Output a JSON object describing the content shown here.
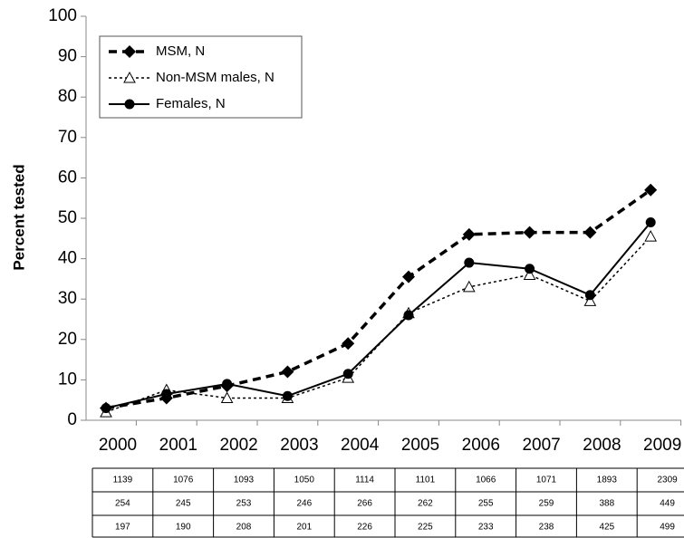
{
  "chart_data": {
    "type": "line",
    "y_label": "Percent tested",
    "categories": [
      "2000",
      "2001",
      "2002",
      "2003",
      "2004",
      "2005",
      "2006",
      "2007",
      "2008",
      "2009"
    ],
    "ylim": [
      0,
      100
    ],
    "yticks": [
      0,
      10,
      20,
      30,
      40,
      50,
      60,
      70,
      80,
      90,
      100
    ],
    "legend": "upper left",
    "series": [
      {
        "name": "MSM, N",
        "color": "#000000",
        "dash": "9,6",
        "width": 3.5,
        "marker": "diamond",
        "values": [
          3,
          5.5,
          8.5,
          12,
          19,
          35.5,
          46,
          46.5,
          46.5,
          57
        ]
      },
      {
        "name": "Non-MSM males, N",
        "color": "#000000",
        "dash": "3,3",
        "width": 1.5,
        "marker": "triangle",
        "values": [
          2,
          7.5,
          5.5,
          5.5,
          10.5,
          26.5,
          33,
          36,
          29.5,
          45.5
        ]
      },
      {
        "name": "Females, N",
        "color": "#000000",
        "dash": "none",
        "width": 2,
        "marker": "circle",
        "values": [
          3,
          6.5,
          9,
          6,
          11.5,
          26,
          39,
          37.5,
          31,
          49
        ]
      }
    ],
    "table": [
      [
        1139,
        1076,
        1093,
        1050,
        1114,
        1101,
        1066,
        1071,
        1893,
        2309
      ],
      [
        254,
        245,
        253,
        246,
        266,
        262,
        255,
        259,
        388,
        449
      ],
      [
        197,
        190,
        208,
        201,
        226,
        225,
        233,
        238,
        425,
        499
      ]
    ]
  }
}
